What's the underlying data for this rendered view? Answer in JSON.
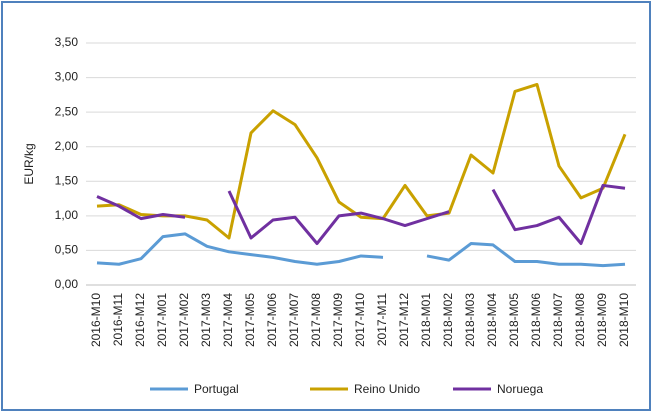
{
  "chart_data": {
    "type": "line",
    "y_label": "EUR/kg",
    "categories": [
      "2016-M10",
      "2016-M11",
      "2016-M12",
      "2017-M01",
      "2017-M02",
      "2017-M03",
      "2017-M04",
      "2017-M05",
      "2017-M06",
      "2017-M07",
      "2017-M08",
      "2017-M09",
      "2017-M10",
      "2017-M11",
      "2017-M12",
      "2018-M01",
      "2018-M02",
      "2018-M03",
      "2018-M04",
      "2018-M05",
      "2018-M06",
      "2018-M07",
      "2018-M08",
      "2018-M09",
      "2018-M10"
    ],
    "series": [
      {
        "name": "Portugal",
        "color": "#5b9bd5",
        "values": [
          0.32,
          0.3,
          0.38,
          0.7,
          0.74,
          0.56,
          0.48,
          0.44,
          0.4,
          0.34,
          0.3,
          0.34,
          0.42,
          0.4,
          null,
          0.42,
          0.36,
          0.6,
          0.58,
          0.34,
          0.34,
          0.3,
          0.3,
          0.28,
          0.3
        ]
      },
      {
        "name": "Reino Unido",
        "color": "#c9a100",
        "values": [
          1.14,
          1.16,
          1.02,
          1.0,
          1.0,
          0.94,
          0.68,
          2.2,
          2.52,
          2.32,
          1.84,
          1.2,
          0.98,
          0.96,
          1.44,
          1.0,
          1.04,
          1.88,
          1.62,
          2.8,
          2.9,
          1.72,
          1.26,
          1.4,
          2.18
        ]
      },
      {
        "name": "Noruega",
        "color": "#7030a0",
        "values": [
          1.28,
          1.14,
          0.96,
          1.02,
          0.98,
          null,
          1.36,
          0.68,
          0.94,
          0.98,
          0.6,
          1.0,
          1.04,
          0.96,
          0.86,
          0.96,
          1.06,
          null,
          1.38,
          0.8,
          0.86,
          0.98,
          0.6,
          1.44,
          1.4
        ]
      }
    ],
    "ylim": [
      0,
      3.5
    ],
    "yticks": [
      {
        "value": 0,
        "label": "0,00"
      },
      {
        "value": 0.5,
        "label": "0,50"
      },
      {
        "value": 1,
        "label": "1,00"
      },
      {
        "value": 1.5,
        "label": "1,50"
      },
      {
        "value": 2,
        "label": "2,00"
      },
      {
        "value": 2.5,
        "label": "2,50"
      },
      {
        "value": 3,
        "label": "3,00"
      },
      {
        "value": 3.5,
        "label": "3,50"
      }
    ],
    "grid": true,
    "legend": "bottom"
  }
}
